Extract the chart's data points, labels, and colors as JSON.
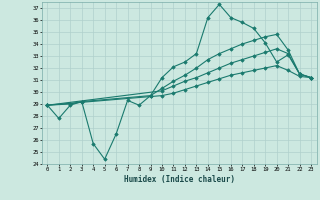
{
  "xlabel": "Humidex (Indice chaleur)",
  "bg_color": "#cce8e0",
  "grid_color": "#b0d0cc",
  "line_color": "#1a7a6e",
  "xlim": [
    -0.5,
    23.5
  ],
  "ylim": [
    24,
    37.5
  ],
  "yticks": [
    24,
    25,
    26,
    27,
    28,
    29,
    30,
    31,
    32,
    33,
    34,
    35,
    36,
    37
  ],
  "xticks": [
    0,
    1,
    2,
    3,
    4,
    5,
    6,
    7,
    8,
    9,
    10,
    11,
    12,
    13,
    14,
    15,
    16,
    17,
    18,
    19,
    20,
    21,
    22,
    23
  ],
  "line1_x": [
    0,
    1,
    2,
    3,
    4,
    5,
    6,
    7,
    8,
    9,
    10,
    11,
    12,
    13,
    14,
    15,
    16,
    17,
    18,
    19,
    20,
    21,
    22,
    23
  ],
  "line1_y": [
    28.9,
    27.8,
    28.9,
    29.2,
    25.7,
    24.4,
    26.5,
    29.3,
    28.9,
    29.7,
    31.2,
    32.1,
    32.5,
    33.2,
    36.2,
    37.3,
    36.2,
    35.8,
    35.3,
    34.1,
    32.5,
    33.1,
    31.5,
    31.2
  ],
  "line2_x": [
    0,
    2,
    3,
    9,
    10,
    11,
    12,
    13,
    14,
    15,
    16,
    17,
    18,
    19,
    20,
    21,
    22,
    23
  ],
  "line2_y": [
    28.9,
    29.0,
    29.2,
    29.7,
    30.3,
    30.9,
    31.4,
    32.0,
    32.7,
    33.2,
    33.6,
    34.0,
    34.3,
    34.6,
    34.8,
    33.5,
    31.5,
    31.2
  ],
  "line3_x": [
    0,
    10,
    11,
    12,
    13,
    14,
    15,
    16,
    17,
    18,
    19,
    20,
    21,
    22,
    23
  ],
  "line3_y": [
    28.9,
    30.1,
    30.5,
    30.9,
    31.2,
    31.6,
    32.0,
    32.4,
    32.7,
    33.0,
    33.3,
    33.6,
    33.2,
    31.5,
    31.2
  ],
  "line4_x": [
    0,
    10,
    11,
    12,
    13,
    14,
    15,
    16,
    17,
    18,
    19,
    20,
    21,
    22,
    23
  ],
  "line4_y": [
    28.9,
    29.7,
    29.9,
    30.2,
    30.5,
    30.8,
    31.1,
    31.4,
    31.6,
    31.8,
    32.0,
    32.2,
    31.8,
    31.3,
    31.2
  ]
}
